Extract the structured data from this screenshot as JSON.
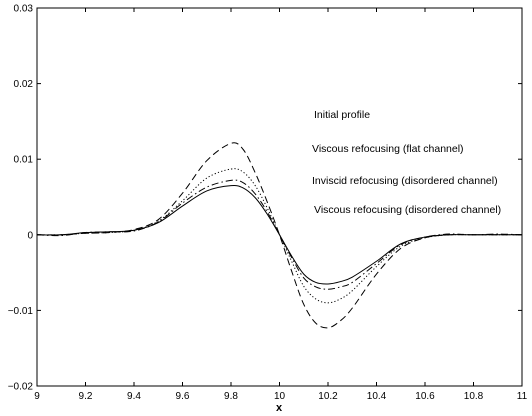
{
  "chart_data": {
    "type": "line",
    "title": "",
    "xlabel": "x",
    "ylabel": "",
    "xlim": [
      9,
      11
    ],
    "ylim": [
      -0.02,
      0.03
    ],
    "grid": false,
    "legend_placement": "right",
    "x_ticks": [
      9,
      9.2,
      9.4,
      9.6,
      9.8,
      10,
      10.2,
      10.4,
      10.6,
      10.8,
      11
    ],
    "x_tick_labels": [
      "9",
      "9.2",
      "9.4",
      "9.6",
      "9.8",
      "10",
      "10.2",
      "10.4",
      "10.6",
      "10.8",
      "11"
    ],
    "y_ticks": [
      -0.02,
      -0.01,
      0,
      0.01,
      0.02,
      0.03
    ],
    "y_tick_labels": [
      "−0.02",
      "−0.01",
      "0",
      "0.01",
      "0.02",
      "0.03"
    ],
    "series": [
      {
        "name": "Initial profile",
        "style": "dashed",
        "color": "#000000",
        "x": [
          9,
          9.1,
          9.2,
          9.3,
          9.4,
          9.5,
          9.6,
          9.7,
          9.8,
          9.85,
          9.9,
          9.95,
          10,
          10.05,
          10.1,
          10.15,
          10.2,
          10.25,
          10.3,
          10.4,
          10.5,
          10.6,
          10.7,
          10.8,
          10.9,
          11
        ],
        "y": [
          0,
          0,
          0.0002,
          0.0003,
          0.0007,
          0.002,
          0.0055,
          0.0098,
          0.0121,
          0.0113,
          0.0082,
          0.0043,
          0,
          -0.0048,
          -0.0092,
          -0.0117,
          -0.0123,
          -0.0114,
          -0.0097,
          -0.0052,
          -0.0018,
          -0.0004,
          0,
          0,
          0,
          0
        ]
      },
      {
        "name": "Viscous refocusing (flat channel)",
        "style": "dotted",
        "color": "#000000",
        "x": [
          9,
          9.1,
          9.2,
          9.3,
          9.4,
          9.5,
          9.6,
          9.7,
          9.8,
          9.85,
          9.9,
          9.95,
          10,
          10.05,
          10.1,
          10.15,
          10.2,
          10.25,
          10.3,
          10.4,
          10.5,
          10.6,
          10.7,
          10.8,
          10.9,
          11
        ],
        "y": [
          0,
          0,
          0.0002,
          0.0003,
          0.0006,
          0.0018,
          0.0045,
          0.0075,
          0.0087,
          0.0083,
          0.0065,
          0.0035,
          0,
          -0.0035,
          -0.0068,
          -0.0085,
          -0.009,
          -0.0085,
          -0.0074,
          -0.0042,
          -0.0015,
          -0.0004,
          0,
          0,
          0,
          0
        ]
      },
      {
        "name": "Inviscid refocusing (disordered channel)",
        "style": "dashdot",
        "color": "#000000",
        "x": [
          9,
          9.1,
          9.2,
          9.3,
          9.4,
          9.5,
          9.6,
          9.7,
          9.8,
          9.85,
          9.9,
          9.95,
          10,
          10.05,
          10.1,
          10.15,
          10.2,
          10.25,
          10.3,
          10.4,
          10.5,
          10.6,
          10.7,
          10.8,
          10.9,
          11
        ],
        "y": [
          0,
          -0.0001,
          0.0003,
          0.0004,
          0.0005,
          0.0017,
          0.0042,
          0.0063,
          0.0072,
          0.0069,
          0.0054,
          0.003,
          0,
          -0.003,
          -0.0057,
          -0.0069,
          -0.0072,
          -0.0069,
          -0.0063,
          -0.0038,
          -0.0013,
          -0.0003,
          0.0001,
          0,
          0.0001,
          0
        ]
      },
      {
        "name": "Viscous refocusing (disordered channel)",
        "style": "solid",
        "color": "#000000",
        "x": [
          9,
          9.1,
          9.2,
          9.3,
          9.4,
          9.5,
          9.6,
          9.7,
          9.8,
          9.85,
          9.9,
          9.95,
          10,
          10.05,
          10.1,
          10.15,
          10.2,
          10.25,
          10.3,
          10.4,
          10.5,
          10.6,
          10.7,
          10.8,
          10.9,
          11
        ],
        "y": [
          0,
          0,
          0.0003,
          0.0004,
          0.0006,
          0.0016,
          0.0038,
          0.0058,
          0.0065,
          0.0062,
          0.0049,
          0.0027,
          0,
          -0.0028,
          -0.0052,
          -0.0063,
          -0.0065,
          -0.0062,
          -0.0056,
          -0.0035,
          -0.0012,
          -0.0003,
          0,
          0,
          0,
          0
        ]
      }
    ]
  }
}
